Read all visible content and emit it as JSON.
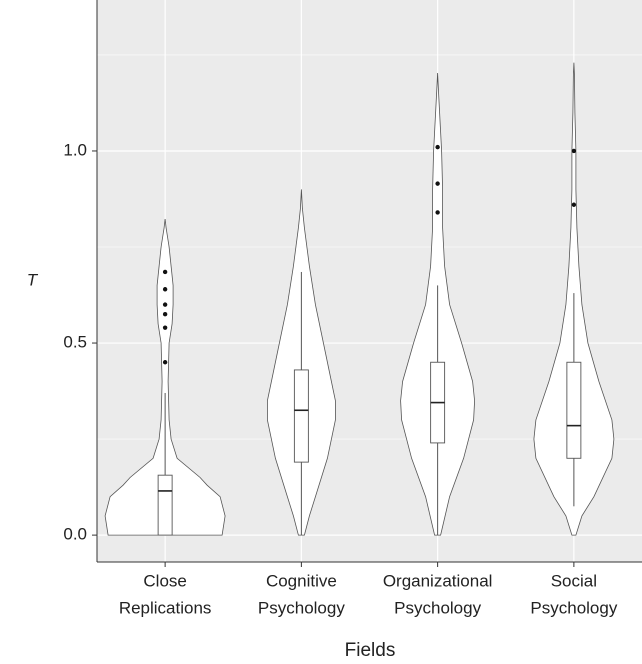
{
  "chart_data": {
    "type": "violin",
    "x_label": "Fields",
    "y_label": "T",
    "categories": [
      [
        "Close",
        "Replications"
      ],
      [
        "Cognitive",
        "Psychology"
      ],
      [
        "Organizational",
        "Psychology"
      ],
      [
        "Social",
        "Psychology"
      ]
    ],
    "ylim": [
      -0.07,
      1.393
    ],
    "yticks": [
      {
        "value": 0,
        "label": "0.0"
      },
      0.5,
      {
        "value": 1,
        "label": "1.0"
      }
    ],
    "minor_yticks": [
      0.25,
      0.75,
      1.25
    ],
    "grid": true,
    "violin_color": "#ffffff",
    "violins": [
      {
        "y": [
          0,
          0.05,
          0.1,
          0.13,
          0.15,
          0.2,
          0.25,
          0.3,
          0.4,
          0.5,
          0.55,
          0.6,
          0.65,
          0.7,
          0.75,
          0.8,
          0.823
        ],
        "width": [
          57,
          60,
          55,
          42,
          35,
          12,
          6,
          4,
          3,
          4,
          7,
          8,
          8,
          6,
          4,
          1,
          0
        ]
      },
      {
        "y": [
          0,
          0.05,
          0.1,
          0.2,
          0.3,
          0.35,
          0.4,
          0.5,
          0.6,
          0.7,
          0.8,
          0.85,
          0.9
        ],
        "width": [
          3,
          8,
          14,
          26,
          34,
          34,
          30,
          22,
          14,
          8,
          3,
          1,
          0
        ]
      },
      {
        "y": [
          0,
          0.1,
          0.2,
          0.3,
          0.35,
          0.4,
          0.5,
          0.6,
          0.7,
          0.8,
          0.9,
          1.0,
          1.1,
          1.15,
          1.203
        ],
        "width": [
          3,
          12,
          26,
          36,
          37,
          35,
          24,
          12,
          7,
          5,
          5,
          4,
          2,
          1,
          0
        ]
      },
      {
        "y": [
          0,
          0.05,
          0.1,
          0.2,
          0.25,
          0.3,
          0.4,
          0.5,
          0.6,
          0.7,
          0.8,
          0.9,
          1.0,
          1.1,
          1.2,
          1.23
        ],
        "width": [
          2,
          8,
          20,
          38,
          40,
          38,
          25,
          14,
          8,
          5,
          3,
          2,
          2,
          1,
          0.5,
          0
        ]
      }
    ],
    "boxes": [
      {
        "whisker_low": 0,
        "q1": 0,
        "median": 0.115,
        "q3": 0.156,
        "whisker_high": 0.37,
        "outliers": [
          0.685,
          0.64,
          0.6,
          0.575,
          0.54,
          0.45
        ]
      },
      {
        "whisker_low": 0,
        "q1": 0.19,
        "median": 0.325,
        "q3": 0.43,
        "whisker_high": 0.685,
        "outliers": []
      },
      {
        "whisker_low": 0,
        "q1": 0.24,
        "median": 0.345,
        "q3": 0.45,
        "whisker_high": 0.65,
        "outliers": [
          1.01,
          0.915,
          0.84
        ]
      },
      {
        "whisker_low": 0.075,
        "q1": 0.2,
        "median": 0.285,
        "q3": 0.45,
        "whisker_high": 0.63,
        "outliers": [
          1.0,
          0.86
        ]
      }
    ]
  }
}
